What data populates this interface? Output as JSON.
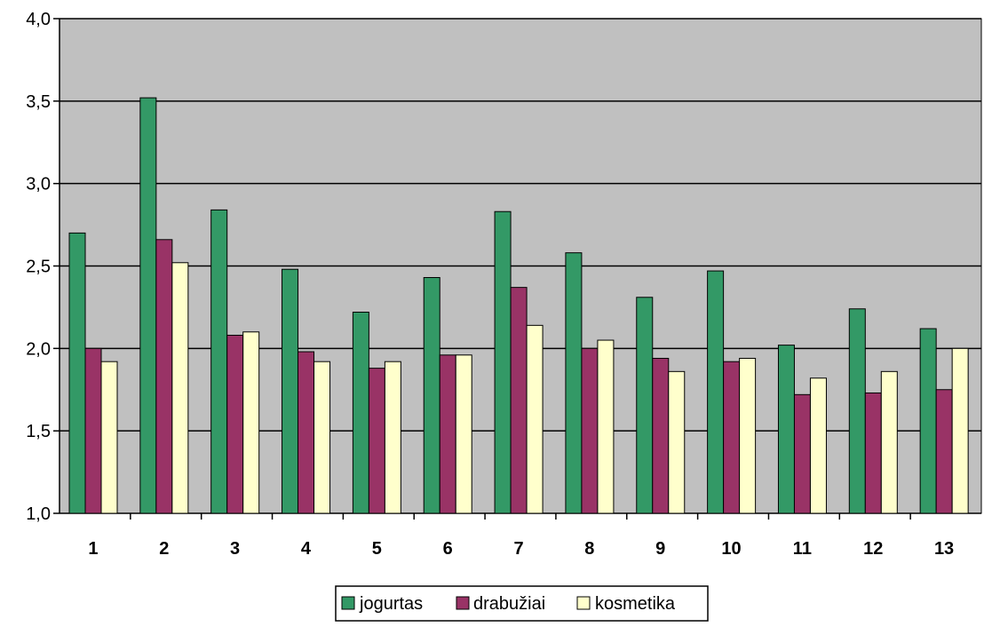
{
  "chart_data": {
    "type": "bar",
    "title": "",
    "xlabel": "",
    "ylabel": "",
    "categories": [
      "1",
      "2",
      "3",
      "4",
      "5",
      "6",
      "7",
      "8",
      "9",
      "10",
      "11",
      "12",
      "13"
    ],
    "series": [
      {
        "name": "jogurtas",
        "color": "#339966",
        "values": [
          2.7,
          3.52,
          2.84,
          2.48,
          2.22,
          2.43,
          2.83,
          2.58,
          2.31,
          2.47,
          2.02,
          2.24,
          2.12
        ]
      },
      {
        "name": "drabužiai",
        "color": "#993366",
        "values": [
          2.0,
          2.66,
          2.08,
          1.98,
          1.88,
          1.96,
          2.37,
          2.0,
          1.94,
          1.92,
          1.72,
          1.73,
          1.75
        ]
      },
      {
        "name": "kosmetika",
        "color": "#FFFFCC",
        "values": [
          1.92,
          2.52,
          2.1,
          1.92,
          1.92,
          1.96,
          2.14,
          2.05,
          1.86,
          1.94,
          1.82,
          1.86,
          2.0
        ]
      }
    ],
    "ylim": [
      1.0,
      4.0
    ],
    "yticks": [
      "1,0",
      "1,5",
      "2,0",
      "2,5",
      "3,0",
      "3,5",
      "4,0"
    ],
    "plot_background": "#C0C0C0",
    "grid": true,
    "legend_position": "bottom"
  }
}
